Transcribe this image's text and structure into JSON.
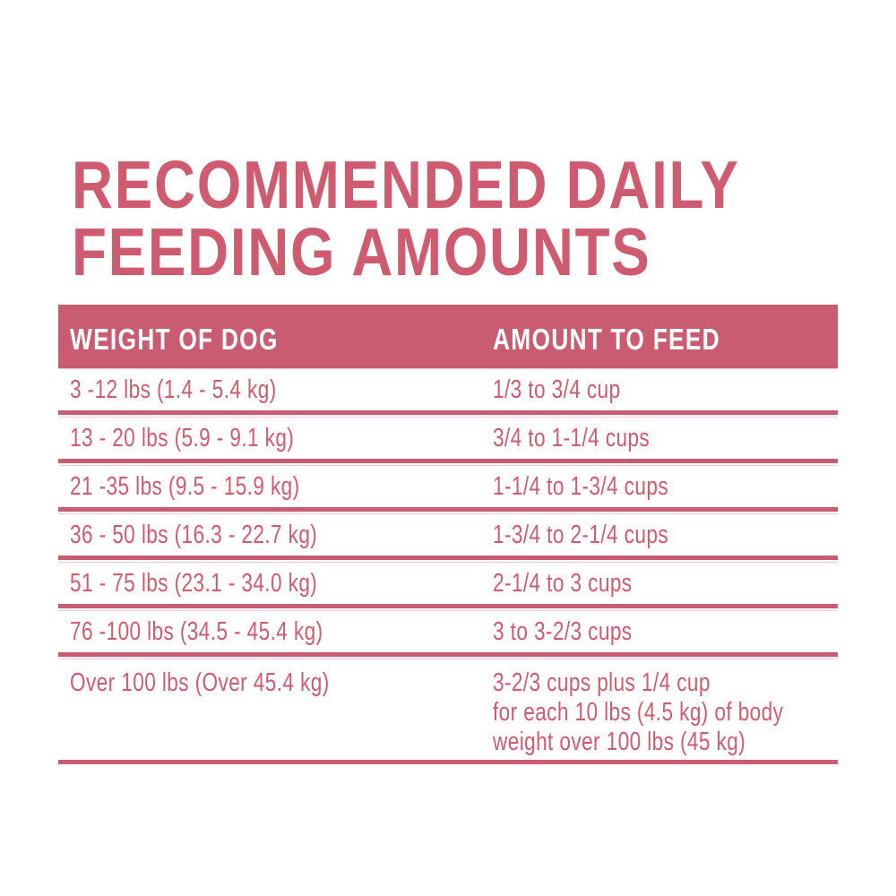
{
  "title": {
    "line1": "RECOMMENDED DAILY",
    "line2": "FEEDING AMOUNTS",
    "color": "#CF5B70"
  },
  "table": {
    "header_bg_color": "#C95C70",
    "rule_color": "#C95C70",
    "light_rule_color": "#F0CCD3",
    "headers": {
      "weight": "WEIGHT OF DOG",
      "amount": "AMOUNT TO FEED"
    },
    "rows": [
      {
        "weight": "3 -12 lbs (1.4 - 5.4 kg)",
        "amount": "1/3 to 3/4 cup"
      },
      {
        "weight": "13 - 20 lbs (5.9 - 9.1 kg)",
        "amount": "3/4 to 1-1/4 cups"
      },
      {
        "weight": "21 -35 lbs (9.5 - 15.9 kg)",
        "amount": "1-1/4 to 1-3/4 cups"
      },
      {
        "weight": "36 - 50 lbs (16.3 - 22.7 kg)",
        "amount": "1-3/4 to 2-1/4 cups"
      },
      {
        "weight": "51 - 75 lbs (23.1 - 34.0 kg)",
        "amount": "2-1/4 to 3 cups"
      },
      {
        "weight": "76 -100 lbs (34.5 - 45.4 kg)",
        "amount": "3 to 3-2/3 cups"
      },
      {
        "weight": "Over 100 lbs (Over 45.4 kg)",
        "amount_lines": [
          "3-2/3 cups plus 1/4 cup",
          "for each 10 lbs (4.5 kg) of body",
          "weight over 100 lbs (45 kg)"
        ]
      }
    ]
  }
}
